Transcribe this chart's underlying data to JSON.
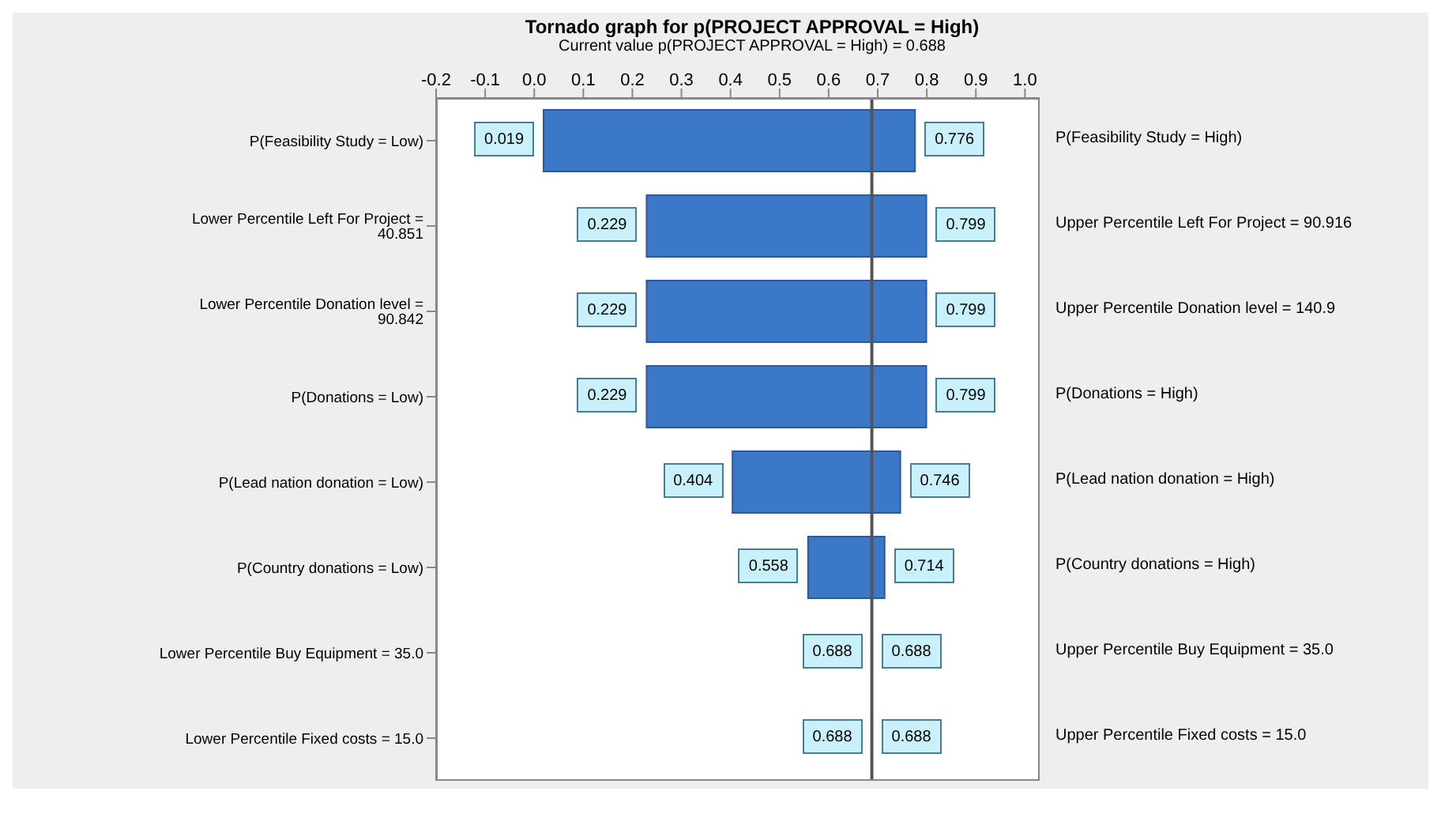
{
  "chart_data": {
    "type": "bar",
    "orientation": "horizontal",
    "title": "Tornado graph for p(PROJECT APPROVAL = High)",
    "subtitle": "Current value p(PROJECT APPROVAL = High) = 0.688",
    "categories": [
      "P(Feasibility Study = Low)",
      "Lower Percentile Left For Project = 40.851",
      "Lower Percentile Donation level = 90.842",
      "P(Donations = Low)",
      "P(Lead nation donation = Low)",
      "P(Country donations = Low)",
      "Lower Percentile Buy Equipment = 35.0",
      "Lower Percentile Fixed costs = 15.0"
    ],
    "base": [
      0.019,
      0.229,
      0.229,
      0.229,
      0.404,
      0.558,
      null,
      null
    ],
    "values": [
      0.757,
      0.57,
      0.57,
      0.57,
      0.342,
      0.156,
      null,
      null
    ],
    "color": "#3c78c8",
    "xlim": [
      -0.2,
      1.03
    ],
    "xticks": [
      -0.2,
      -0.1,
      {
        "value": 0,
        "label": "0.0"
      },
      0.1,
      0.2,
      0.3,
      0.4,
      0.5,
      0.6,
      0.7,
      0.8,
      0.9,
      {
        "value": 1,
        "label": "1.0"
      }
    ],
    "ref_lines": [
      {
        "axis": "x",
        "value": 0.688,
        "color": "#555555"
      }
    ],
    "annotations": [
      {
        "text": "0.019",
        "x": 0.019,
        "y": "P(Feasibility Study = Low)"
      },
      {
        "text": "0.776",
        "x": 0.776,
        "y": "P(Feasibility Study = Low)"
      },
      {
        "text": "0.229",
        "x": 0.229,
        "y": "Lower Percentile Left For Project = 40.851"
      },
      {
        "text": "0.799",
        "x": 0.799,
        "y": "Lower Percentile Left For Project = 40.851"
      },
      {
        "text": "0.229",
        "x": 0.229,
        "y": "Lower Percentile Donation level = 90.842"
      },
      {
        "text": "0.799",
        "x": 0.799,
        "y": "Lower Percentile Donation level = 90.842"
      },
      {
        "text": "0.229",
        "x": 0.229,
        "y": "P(Donations = Low)"
      },
      {
        "text": "0.799",
        "x": 0.799,
        "y": "P(Donations = Low)"
      },
      {
        "text": "0.404",
        "x": 0.404,
        "y": "P(Lead nation donation = Low)"
      },
      {
        "text": "0.746",
        "x": 0.746,
        "y": "P(Lead nation donation = Low)"
      },
      {
        "text": "0.558",
        "x": 0.558,
        "y": "P(Country donations = Low)"
      },
      {
        "text": "0.714",
        "x": 0.714,
        "y": "P(Country donations = Low)"
      },
      {
        "text": "0.688",
        "x": 0.688,
        "y": "Lower Percentile Buy Equipment = 35.0"
      },
      {
        "text": "0.688",
        "x": 0.688,
        "y": "Lower Percentile Buy Equipment = 35.0"
      },
      {
        "text": "0.688",
        "x": 0.688,
        "y": "Lower Percentile Fixed costs = 15.0"
      },
      {
        "text": "0.688",
        "x": 0.688,
        "y": "Lower Percentile Fixed costs = 15.0"
      },
      "P(Feasibility Study = High)",
      "Upper Percentile Left For Project = 90.916",
      "Upper Percentile Donation level = 140.9",
      "P(Donations = High)",
      "P(Lead nation donation = High)",
      "P(Country donations = High)",
      "Upper Percentile Buy Equipment = 35.0",
      "Upper Percentile Fixed costs = 15.0"
    ]
  }
}
